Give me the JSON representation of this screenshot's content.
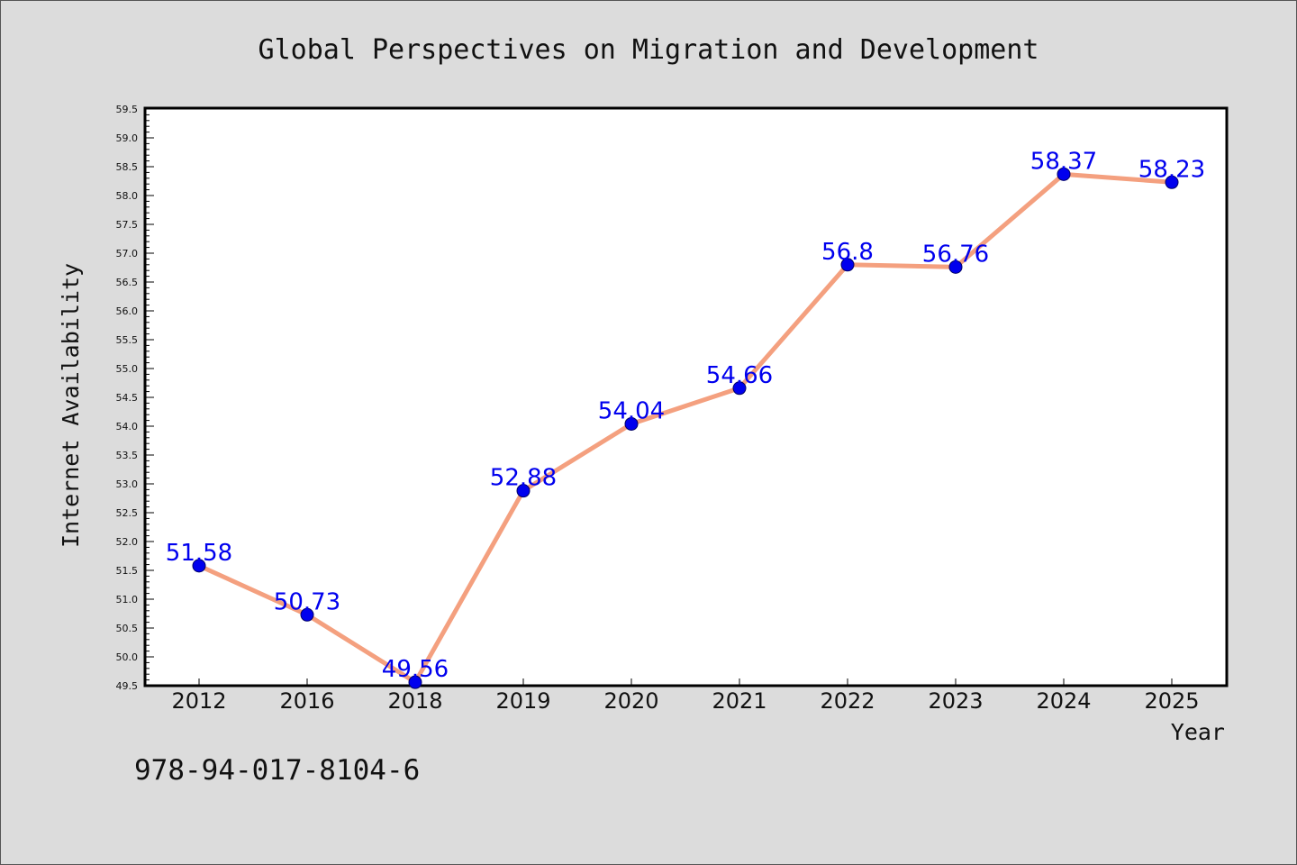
{
  "chart_data": {
    "type": "line",
    "title": "Global Perspectives on Migration and Development",
    "xlabel": "Year",
    "ylabel": "Internet Availability",
    "categories": [
      "2012",
      "2016",
      "2018",
      "2019",
      "2020",
      "2021",
      "2022",
      "2023",
      "2024",
      "2025"
    ],
    "values": [
      51.58,
      50.73,
      49.56,
      52.88,
      54.04,
      54.66,
      56.8,
      56.76,
      58.37,
      58.23
    ],
    "data_labels": [
      "51.58",
      "50.73",
      "49.56",
      "52.88",
      "54.04",
      "54.66",
      "56.8",
      "56.76",
      "58.37",
      "58.23"
    ],
    "ylim": [
      49.5,
      59.5
    ],
    "yticks": [
      "49.5",
      "50.0",
      "50.5",
      "51.0",
      "51.5",
      "52.0",
      "52.5",
      "53.0",
      "53.5",
      "54.0",
      "54.5",
      "55.0",
      "55.5",
      "56.0",
      "56.5",
      "57.0",
      "57.5",
      "58.0",
      "58.5",
      "59.0",
      "59.5"
    ],
    "grid": false,
    "line_color": "#f4a07f",
    "marker_color": "#0000ee",
    "label_color": "#0000ee"
  },
  "footer_code": "978-94-017-8104-6"
}
